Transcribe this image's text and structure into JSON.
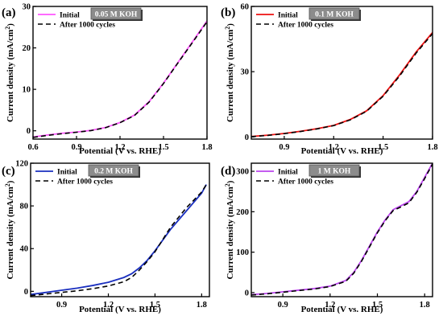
{
  "figure": {
    "panels_count": 4
  },
  "chart_data": [
    {
      "panel_label": "(a)",
      "type": "line",
      "condition": "0.05 M KOH",
      "xlabel": "Potential (V vs. RHE)",
      "ylabel_main": "Current density (mA/cm",
      "ylabel_sup": "2",
      "ylabel_close": ")",
      "xlim": [
        0.6,
        1.8
      ],
      "ylim": [
        -2,
        30
      ],
      "xticks": [
        0.6,
        0.9,
        1.2,
        1.5,
        1.8
      ],
      "xtick_labels": [
        "0.6",
        "0.9",
        "1.2",
        "1.5",
        "1.8"
      ],
      "yticks": [
        0,
        10,
        20,
        30
      ],
      "ytick_labels": [
        "0",
        "10",
        "20",
        "30"
      ],
      "legend_position": "top-left",
      "series": [
        {
          "name": "Initial",
          "color": "#ff55ff",
          "style": "solid",
          "x": [
            0.6,
            0.7,
            0.8,
            0.9,
            1.0,
            1.1,
            1.2,
            1.3,
            1.4,
            1.5,
            1.6,
            1.7,
            1.8
          ],
          "y": [
            -1.5,
            -1.0,
            -0.6,
            -0.3,
            0.1,
            0.8,
            2.0,
            3.8,
            7.0,
            11.5,
            16.5,
            21.5,
            26.5
          ]
        },
        {
          "name": "After 1000 cycles",
          "color": "#000000",
          "style": "dashed",
          "x": [
            0.6,
            0.7,
            0.8,
            0.9,
            1.0,
            1.1,
            1.2,
            1.3,
            1.4,
            1.5,
            1.6,
            1.7,
            1.8
          ],
          "y": [
            -1.6,
            -1.1,
            -0.7,
            -0.35,
            0.05,
            0.75,
            1.95,
            3.7,
            6.9,
            11.4,
            16.4,
            21.3,
            26.3
          ]
        }
      ]
    },
    {
      "panel_label": "(b)",
      "type": "line",
      "condition": "0.1 M KOH",
      "xlabel": "Potential (V vs. RHE)",
      "ylabel_main": "Current density (mA/cm",
      "ylabel_sup": "2",
      "ylabel_close": ")",
      "xlim": [
        0.7,
        1.8
      ],
      "ylim": [
        -1,
        60
      ],
      "xticks": [
        0.9,
        1.2,
        1.5,
        1.8
      ],
      "xtick_labels": [
        "0.9",
        "1.2",
        "1.5",
        "1.8"
      ],
      "yticks": [
        0,
        30,
        60
      ],
      "ytick_labels": [
        "0",
        "30",
        "60"
      ],
      "legend_position": "top-left",
      "series": [
        {
          "name": "Initial",
          "color": "#ee1111",
          "style": "solid",
          "x": [
            0.7,
            0.8,
            0.9,
            1.0,
            1.1,
            1.2,
            1.3,
            1.4,
            1.5,
            1.6,
            1.7,
            1.8
          ],
          "y": [
            0.2,
            0.8,
            1.6,
            2.6,
            3.8,
            5.3,
            8.0,
            12.0,
            19.0,
            28.5,
            39.0,
            48.0
          ]
        },
        {
          "name": "After 1000 cycles",
          "color": "#000000",
          "style": "dashed",
          "x": [
            0.7,
            0.8,
            0.9,
            1.0,
            1.1,
            1.2,
            1.3,
            1.4,
            1.5,
            1.6,
            1.7,
            1.8
          ],
          "y": [
            0.1,
            0.7,
            1.5,
            2.5,
            3.7,
            5.2,
            7.8,
            11.8,
            18.7,
            28.0,
            38.5,
            47.5
          ]
        }
      ]
    },
    {
      "panel_label": "(c)",
      "type": "line",
      "condition": "0.2 M KOH",
      "xlabel": "Potential (V vs. RHE)",
      "ylabel_main": "Current density (mA/cm",
      "ylabel_sup": "2",
      "ylabel_close": ")",
      "xlim": [
        0.7,
        1.85
      ],
      "ylim": [
        -5,
        120
      ],
      "xticks": [
        0.9,
        1.2,
        1.5,
        1.8
      ],
      "xtick_labels": [
        "0.9",
        "1.2",
        "1.5",
        "1.8"
      ],
      "yticks": [
        0,
        40,
        80,
        120
      ],
      "ytick_labels": [
        "0",
        "40",
        "80",
        "120"
      ],
      "legend_position": "top-left",
      "series": [
        {
          "name": "Initial",
          "color": "#1a2fbf",
          "style": "solid",
          "x": [
            0.7,
            0.8,
            0.9,
            1.0,
            1.1,
            1.2,
            1.3,
            1.35,
            1.4,
            1.45,
            1.5,
            1.6,
            1.7,
            1.8,
            1.83
          ],
          "y": [
            -3,
            -1,
            1,
            3,
            5.5,
            8.5,
            13,
            16.5,
            22,
            29,
            38,
            58,
            75,
            92,
            100
          ]
        },
        {
          "name": "After 1000 cycles",
          "color": "#000000",
          "style": "dashed",
          "x": [
            0.7,
            0.8,
            0.9,
            1.0,
            1.1,
            1.2,
            1.3,
            1.35,
            1.4,
            1.45,
            1.5,
            1.6,
            1.7,
            1.8,
            1.83
          ],
          "y": [
            -4,
            -2.5,
            -1,
            0.5,
            2.5,
            5,
            9,
            13,
            20,
            28,
            37,
            60,
            78,
            93,
            100
          ]
        }
      ]
    },
    {
      "panel_label": "(d)",
      "type": "line",
      "condition": "1 M KOH",
      "xlabel": "Potential (V vs. RHE)",
      "ylabel_main": "Current density (mA/cm",
      "ylabel_sup": "2",
      "ylabel_close": ")",
      "xlim": [
        0.7,
        1.85
      ],
      "ylim": [
        -10,
        320
      ],
      "xticks": [
        0.9,
        1.2,
        1.5,
        1.8
      ],
      "xtick_labels": [
        "0.9",
        "1.2",
        "1.5",
        "1.8"
      ],
      "yticks": [
        0,
        100,
        200,
        300
      ],
      "ytick_labels": [
        "0",
        "100",
        "200",
        "300"
      ],
      "legend_position": "top-left",
      "series": [
        {
          "name": "Initial",
          "color": "#bb44ee",
          "style": "solid",
          "x": [
            0.7,
            0.8,
            0.9,
            1.0,
            1.1,
            1.2,
            1.3,
            1.35,
            1.4,
            1.45,
            1.5,
            1.55,
            1.6,
            1.65,
            1.7,
            1.75,
            1.8,
            1.85
          ],
          "y": [
            -5,
            -2,
            2,
            6,
            10,
            16,
            30,
            50,
            80,
            115,
            150,
            180,
            205,
            215,
            225,
            250,
            285,
            320
          ]
        },
        {
          "name": "After 1000 cycles",
          "color": "#000000",
          "style": "dashed",
          "x": [
            0.7,
            0.8,
            0.9,
            1.0,
            1.1,
            1.2,
            1.3,
            1.35,
            1.4,
            1.45,
            1.5,
            1.55,
            1.6,
            1.65,
            1.7,
            1.75,
            1.8,
            1.85
          ],
          "y": [
            -6,
            -3,
            1,
            5,
            9,
            15,
            28,
            48,
            78,
            113,
            148,
            178,
            203,
            212,
            222,
            248,
            282,
            318
          ]
        }
      ]
    }
  ]
}
